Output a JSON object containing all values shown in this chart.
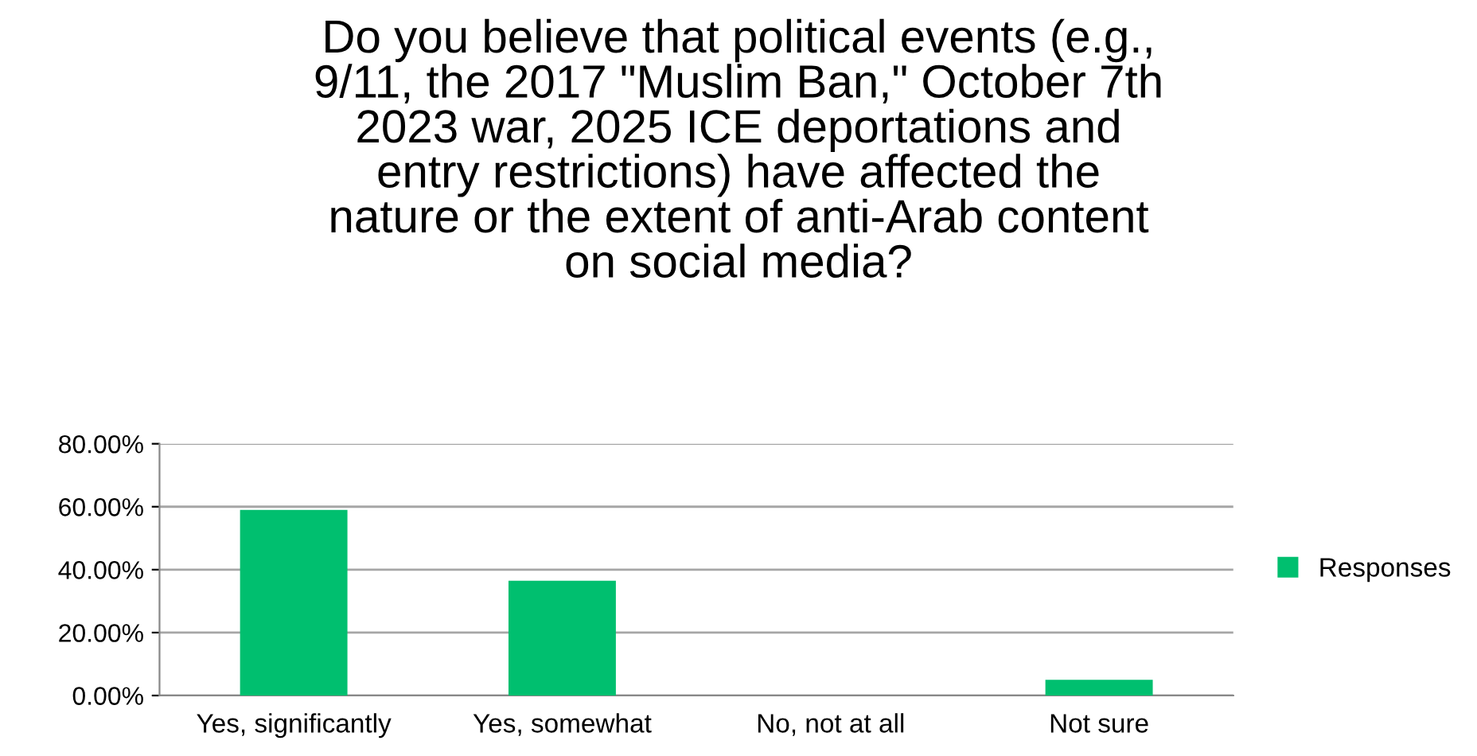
{
  "chart_data": {
    "type": "bar",
    "title": "Do you believe that political events (e.g.,\n9/11, the 2017 \"Muslim Ban,\" October 7th\n2023 war, 2025 ICE deportations and\nentry restrictions) have affected the\nnature or the extent of anti-Arab content\non social media?",
    "categories": [
      "Yes, significantly",
      "Yes, somewhat",
      "No, not at all",
      "Not sure"
    ],
    "series": [
      {
        "name": "Responses",
        "color": "#00bf6f",
        "values": [
          59,
          36.5,
          0,
          5
        ]
      }
    ],
    "ylim": [
      0,
      80
    ],
    "yticks": [
      {
        "value": 0,
        "label": "0.00%"
      },
      {
        "value": 20,
        "label": "20.00%"
      },
      {
        "value": 40,
        "label": "40.00%"
      },
      {
        "value": 60,
        "label": "60.00%"
      },
      {
        "value": 80,
        "label": "80.00%"
      }
    ],
    "grid": "y",
    "legend": "right"
  }
}
